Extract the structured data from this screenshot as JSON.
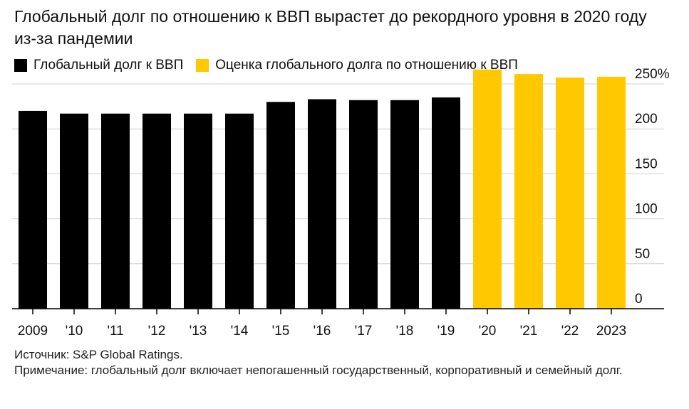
{
  "title": "Глобальный долг по отношению к ВВП вырастет до рекордного уровня в 2020 году из-за пандемии",
  "legend": [
    {
      "label": "Глобальный долг к ВВП",
      "color": "#000000"
    },
    {
      "label": "Оценка глобального долга по отношению к ВВП",
      "color": "#FFC800"
    }
  ],
  "notes": {
    "source": "Источник: S&P Global Ratings.",
    "note": "Примечание: глобальный долг включает непогашенный государственный, корпоративный и семейный долг."
  },
  "chart_data": {
    "type": "bar",
    "categories": [
      "2009",
      "'10",
      "'11",
      "'12",
      "'13",
      "'14",
      "'15",
      "'16",
      "'17",
      "'18",
      "'19",
      "'20",
      "'21",
      "'22",
      "2023"
    ],
    "series": [
      {
        "name": "Глобальный долг к ВВП",
        "color": "#000000",
        "values": [
          220,
          217,
          217,
          217,
          217,
          217,
          230,
          233,
          232,
          232,
          235,
          null,
          null,
          null,
          null
        ]
      },
      {
        "name": "Оценка глобального долга по отношению к ВВП",
        "color": "#FFC800",
        "values": [
          null,
          null,
          null,
          null,
          null,
          null,
          null,
          null,
          null,
          null,
          null,
          266,
          261,
          257,
          258
        ]
      }
    ],
    "yticks": [
      "0",
      "50",
      "100",
      "150",
      "200",
      "250%"
    ],
    "ylim": [
      0,
      250
    ],
    "grid": true,
    "legend_position": "top-left"
  }
}
